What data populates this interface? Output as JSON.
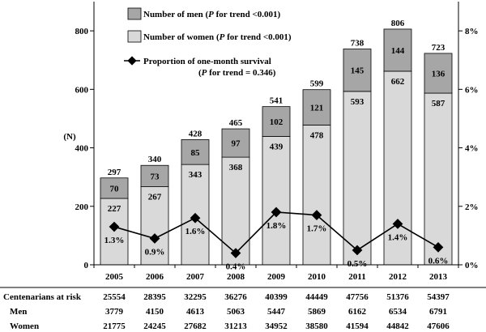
{
  "chart_data": {
    "type": "bar",
    "stacked": true,
    "categories": [
      "2005",
      "2006",
      "2007",
      "2008",
      "2009",
      "2010",
      "2011",
      "2012",
      "2013"
    ],
    "series": [
      {
        "name": "Number of women",
        "values": [
          227,
          267,
          343,
          368,
          439,
          478,
          593,
          662,
          587
        ],
        "color": "#d9d9d9",
        "value_labels": [
          "227",
          "267",
          "343",
          "368",
          "439",
          "478",
          "593",
          "662",
          "587"
        ]
      },
      {
        "name": "Number of men",
        "values": [
          70,
          73,
          85,
          97,
          102,
          121,
          145,
          144,
          136
        ],
        "color": "#a6a6a6",
        "value_labels": [
          "70",
          "73",
          "85",
          "97",
          "102",
          "121",
          "145",
          "144",
          "136"
        ]
      }
    ],
    "totals": [
      297,
      340,
      428,
      465,
      541,
      599,
      738,
      806,
      723
    ],
    "total_labels": [
      "297",
      "340",
      "428",
      "465",
      "541",
      "599",
      "738",
      "806",
      "723"
    ],
    "line_series": {
      "name": "Proportion of one-month survival",
      "values": [
        1.3,
        0.9,
        1.6,
        0.4,
        1.8,
        1.7,
        0.5,
        1.4,
        0.6
      ],
      "labels": [
        "1.3%",
        "0.9%",
        "1.6%",
        "0.4%",
        "1.8%",
        "1.7%",
        "0.5%",
        "1.4%",
        "0.6%"
      ],
      "axis": "right"
    },
    "ylabel": "(N)",
    "ylim": [
      0,
      900
    ],
    "y_ticks": [
      "0",
      "200",
      "400",
      "600",
      "800"
    ],
    "y_tick_values": [
      0,
      200,
      400,
      600,
      800
    ],
    "y2lim": [
      0,
      9
    ],
    "y2_ticks": [
      "0%",
      "2%",
      "4%",
      "6%",
      "8%"
    ],
    "y2_tick_values": [
      0,
      2,
      4,
      6,
      8
    ],
    "legend": [
      {
        "label": "Number of men",
        "p_label": "P",
        "p_text": " for trend <0.001)",
        "symbol": "men-box"
      },
      {
        "label": "Number of women",
        "p_label": "P",
        "p_text": " for trend <0.001)",
        "symbol": "women-box"
      },
      {
        "label": "Proportion of one-month survival",
        "p_label": "P",
        "p_text": " for trend = 0.346)",
        "symbol": "diamond-line"
      }
    ],
    "table": {
      "rows": [
        {
          "label": "Centenarians at risk",
          "values": [
            "25554",
            "28395",
            "32295",
            "36276",
            "40399",
            "44449",
            "47756",
            "51376",
            "54397"
          ]
        },
        {
          "label": "Men",
          "values": [
            "3779",
            "4150",
            "4613",
            "5063",
            "5447",
            "5869",
            "6162",
            "6534",
            "6791"
          ]
        },
        {
          "label": "Women",
          "values": [
            "21775",
            "24245",
            "27682",
            "31213",
            "34952",
            "38580",
            "41594",
            "44842",
            "47606"
          ]
        }
      ]
    }
  }
}
